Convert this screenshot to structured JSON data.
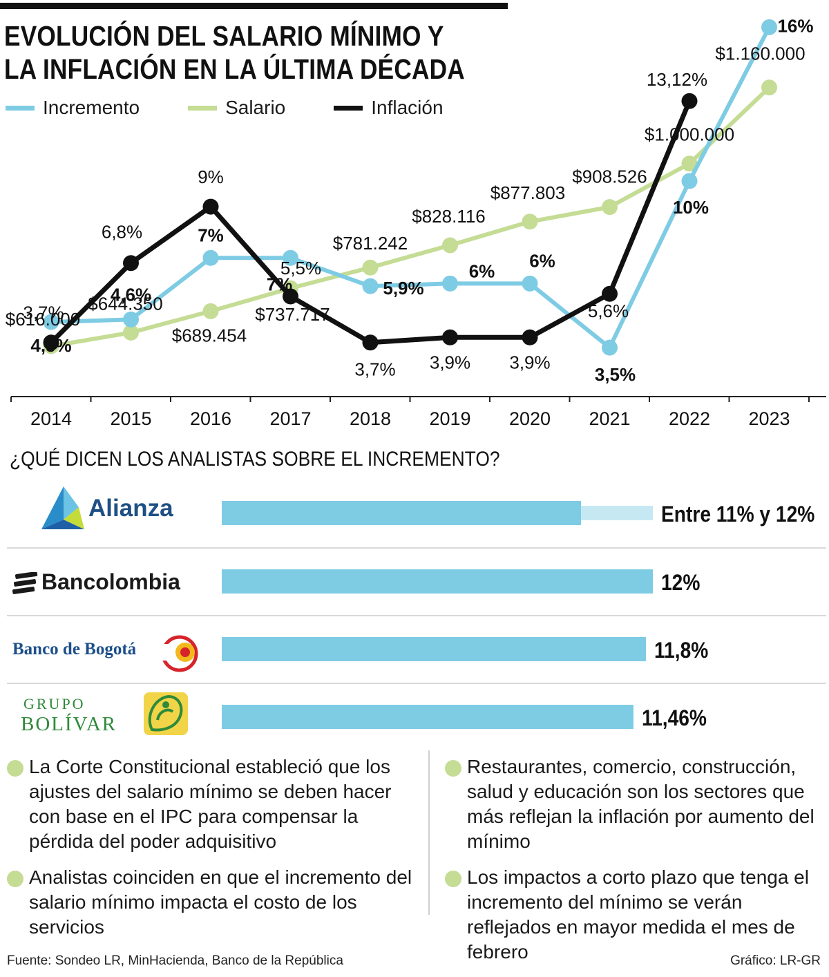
{
  "title_line1": "EVOLUCIÓN DEL SALARIO MÍNIMO Y",
  "title_line2": "LA INFLACIÓN EN LA ÚLTIMA DÉCADA",
  "colors": {
    "incremento": "#7ecbe4",
    "salario": "#c4dc94",
    "inflacion": "#111111",
    "bar_light": "#c6e8f3"
  },
  "chart_data": {
    "type": "line",
    "categories": [
      "2014",
      "2015",
      "2016",
      "2017",
      "2018",
      "2019",
      "2020",
      "2021",
      "2022",
      "2023"
    ],
    "series": [
      {
        "name": "Incremento",
        "unit": "%",
        "values": [
          4.5,
          4.6,
          7,
          7,
          5.9,
          6,
          6,
          3.5,
          10,
          16
        ],
        "labels": [
          "4,5%",
          "4,6%",
          "7%",
          "7%",
          "5,9%",
          "6%",
          "6%",
          "3,5%",
          "10%",
          "16%"
        ]
      },
      {
        "name": "Salario",
        "unit": "COP",
        "values": [
          616000,
          644350,
          689454,
          737717,
          781242,
          828116,
          877803,
          908526,
          1000000,
          1160000
        ],
        "labels": [
          "$616.000",
          "$644.350",
          "$689.454",
          "$737.717",
          "$781.242",
          "$828.116",
          "$877.803",
          "$908.526",
          "$1.000.000",
          "$1.160.000"
        ]
      },
      {
        "name": "Inflación",
        "unit": "%",
        "values": [
          3.7,
          6.8,
          9,
          5.5,
          3.7,
          3.9,
          3.9,
          5.6,
          13.12,
          null
        ],
        "labels": [
          "3,7%",
          "6,8%",
          "9%",
          "5,5%",
          "3,7%",
          "3,9%",
          "3,9%",
          "5,6%",
          "13,12%",
          ""
        ]
      }
    ],
    "legend": "top-left",
    "grid": false
  },
  "analysts_title": "¿QUÉ DICEN LOS ANALISTAS SOBRE EL INCREMENTO?",
  "analysts": [
    {
      "name": "Alianza",
      "value": 11,
      "value_max": 12,
      "label": "Entre 11% y 12%"
    },
    {
      "name": "Bancolombia",
      "value": 12,
      "label": "12%"
    },
    {
      "name": "Banco de Bogotá",
      "value": 11.8,
      "label": "11,8%"
    },
    {
      "name_line1": "GRUPO",
      "name_line2": "BOLÍVAR",
      "value": 11.46,
      "label": "11,46%"
    }
  ],
  "bar_scale_max": 12,
  "notes_left": [
    "La Corte Constitucional estableció que los ajustes del salario mínimo se deben hacer con base en el IPC para compensar la pérdida del poder adquisitivo",
    "Analistas coinciden en que el incremento del salario mínimo impacta el costo de los servicios"
  ],
  "notes_right": [
    "Restaurantes, comercio, construcción, salud y educación son los sectores que más reflejan la inflación por aumento del mínimo",
    "Los impactos a corto plazo que tenga el incremento del mínimo se verán reflejados en mayor medida el mes de febrero"
  ],
  "source": "Fuente: Sondeo LR, MinHacienda, Banco de la República",
  "credit": "Gráfico: LR-GR"
}
